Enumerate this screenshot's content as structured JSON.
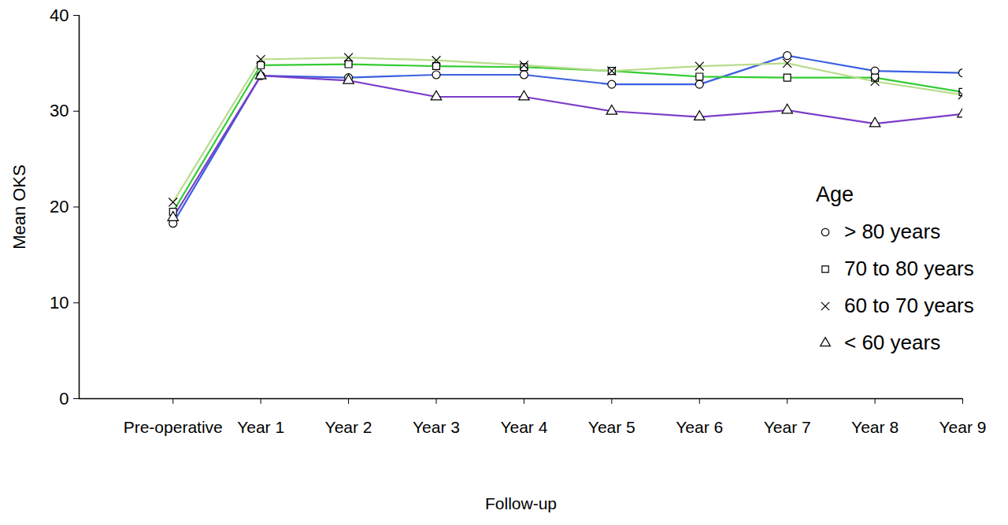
{
  "chart_data": {
    "type": "line",
    "categories": [
      "Pre-operative",
      "Year 1",
      "Year 2",
      "Year 3",
      "Year 4",
      "Year 5",
      "Year 6",
      "Year 7",
      "Year 8",
      "Year 9"
    ],
    "series": [
      {
        "name": "> 80 years",
        "color": "#3a5fe0",
        "marker": "circle",
        "values": [
          18.3,
          33.7,
          33.5,
          33.8,
          33.8,
          32.8,
          32.8,
          35.8,
          34.2,
          34.0
        ]
      },
      {
        "name": "70 to 80 years",
        "color": "#33cc33",
        "marker": "square",
        "values": [
          19.5,
          34.8,
          34.9,
          34.7,
          34.6,
          34.2,
          33.6,
          33.5,
          33.5,
          32.0
        ]
      },
      {
        "name": "60 to 70 years",
        "color": "#b8dc8c",
        "marker": "times",
        "values": [
          20.5,
          35.4,
          35.6,
          35.3,
          34.8,
          34.2,
          34.7,
          35.0,
          33.1,
          31.7
        ]
      },
      {
        "name": "< 60 years",
        "color": "#7a3dc8",
        "marker": "triangle",
        "values": [
          18.9,
          33.7,
          33.2,
          31.5,
          31.5,
          30.0,
          29.4,
          30.1,
          28.7,
          29.7
        ]
      }
    ],
    "xlabel": "Follow-up",
    "ylabel": "Mean OKS",
    "ylim": [
      0,
      40
    ],
    "yticks": [
      0,
      10,
      20,
      30,
      40
    ],
    "grid": false,
    "legend": "right",
    "legend_title": "Age"
  }
}
